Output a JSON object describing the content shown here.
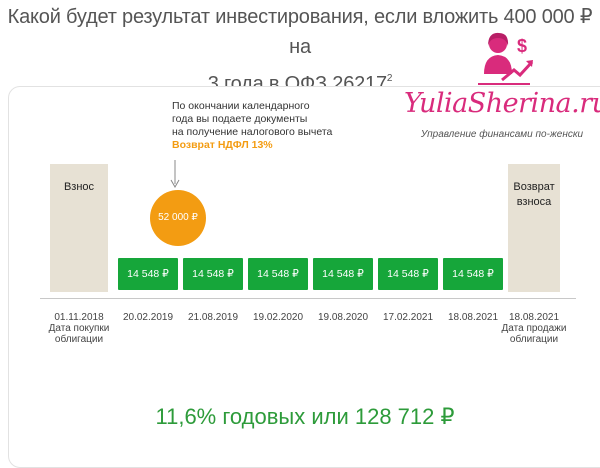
{
  "header": {
    "title_line1": "Какой будет результат инвестирования, если вложить 400 000 ₽ на",
    "title_line2": "3 года в ОФЗ 26217",
    "title_sup": "2"
  },
  "brand": {
    "name": "YuliaSherina.ru",
    "tagline": "Управление финансами по-женски",
    "logo_icon": "woman-dollar-growth-icon",
    "color": "#d92b7c"
  },
  "note": {
    "lines": [
      "По окончании календарного",
      "года вы подаете документы",
      "на получение налогового вычета"
    ],
    "highlight": "Возврат НДФЛ 13%"
  },
  "left_column": {
    "label": "Взнос"
  },
  "right_column": {
    "label_line1": "Возврат",
    "label_line2": "взноса"
  },
  "tax_refund": {
    "amount": "52 000 ₽",
    "color": "#f39c12"
  },
  "coupons": [
    "14 548 ₽",
    "14 548 ₽",
    "14 548 ₽",
    "14 548 ₽",
    "14 548 ₽",
    "14 548 ₽"
  ],
  "coupon_color": "#16a63a",
  "dates": [
    {
      "date": "01.11.2018",
      "caption_line1": "Дата покупки",
      "caption_line2": "облигации"
    },
    {
      "date": "20.02.2019"
    },
    {
      "date": "21.08.2019"
    },
    {
      "date": "19.02.2020"
    },
    {
      "date": "19.08.2020"
    },
    {
      "date": "17.02.2021"
    },
    {
      "date": "18.08.2021"
    },
    {
      "date": "18.08.2021",
      "caption_line1": "Дата продажи",
      "caption_line2": "облигации"
    }
  ],
  "result": {
    "text": "11,6% годовых или 128 712 ₽",
    "color": "#2d9b3a"
  }
}
